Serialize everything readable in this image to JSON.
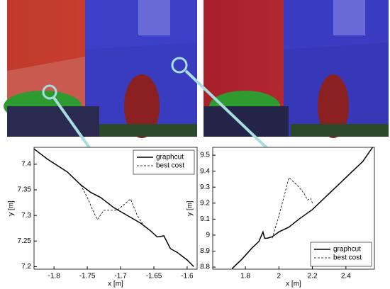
{
  "chart_data": [
    {
      "type": "line",
      "xlabel": "x [m]",
      "ylabel": "y [m]",
      "xlim": [
        -1.83,
        -1.585
      ],
      "ylim": [
        7.195,
        7.433
      ],
      "xticks": [
        -1.8,
        -1.75,
        -1.7,
        -1.65,
        -1.6
      ],
      "yticks": [
        7.2,
        7.25,
        7.3,
        7.35,
        7.4
      ],
      "legend": "upper-right",
      "series": [
        {
          "name": "graphcut",
          "color": "#000000",
          "style": "solid",
          "x": [
            -1.83,
            -1.81,
            -1.78,
            -1.76,
            -1.745,
            -1.73,
            -1.71,
            -1.69,
            -1.67,
            -1.655,
            -1.645,
            -1.635,
            -1.625,
            -1.615,
            -1.6,
            -1.59
          ],
          "values": [
            7.43,
            7.41,
            7.385,
            7.36,
            7.345,
            7.335,
            7.315,
            7.3,
            7.285,
            7.27,
            7.258,
            7.26,
            7.235,
            7.228,
            7.213,
            7.2
          ]
        },
        {
          "name": "best cost",
          "color": "#000000",
          "style": "dashed",
          "x": [
            -1.76,
            -1.75,
            -1.74,
            -1.735,
            -1.725,
            -1.705,
            -1.685,
            -1.675,
            -1.665,
            -1.655
          ],
          "values": [
            7.36,
            7.335,
            7.305,
            7.292,
            7.31,
            7.31,
            7.332,
            7.3,
            7.28,
            7.27
          ]
        }
      ]
    },
    {
      "type": "line",
      "xlabel": "x [m]",
      "ylabel": "y [m]",
      "xlim": [
        1.605,
        2.57
      ],
      "ylim": [
        8.787,
        9.549
      ],
      "xticks": [
        1.8,
        2,
        2.2,
        2.4
      ],
      "yticks": [
        8.8,
        8.9,
        9,
        9.1,
        9.2,
        9.3,
        9.4,
        9.5
      ],
      "legend": "lower-right",
      "series": [
        {
          "name": "graphcut",
          "color": "#000000",
          "style": "solid",
          "x": [
            1.72,
            1.78,
            1.84,
            1.88,
            1.905,
            1.915,
            1.93,
            1.96,
            2.0,
            2.06,
            2.12,
            2.2,
            2.28,
            2.36,
            2.44,
            2.5,
            2.56
          ],
          "values": [
            8.79,
            8.85,
            8.92,
            8.96,
            9.02,
            8.98,
            8.98,
            8.99,
            9.02,
            9.05,
            9.1,
            9.16,
            9.24,
            9.32,
            9.4,
            9.46,
            9.55
          ]
        },
        {
          "name": "best cost",
          "color": "#000000",
          "style": "dashed",
          "x": [
            1.96,
            2.0,
            2.04,
            2.06,
            2.09,
            2.12,
            2.15,
            2.17,
            2.19,
            2.2
          ],
          "values": [
            8.98,
            9.12,
            9.28,
            9.36,
            9.33,
            9.3,
            9.26,
            9.22,
            9.23,
            9.2
          ]
        }
      ]
    }
  ]
}
